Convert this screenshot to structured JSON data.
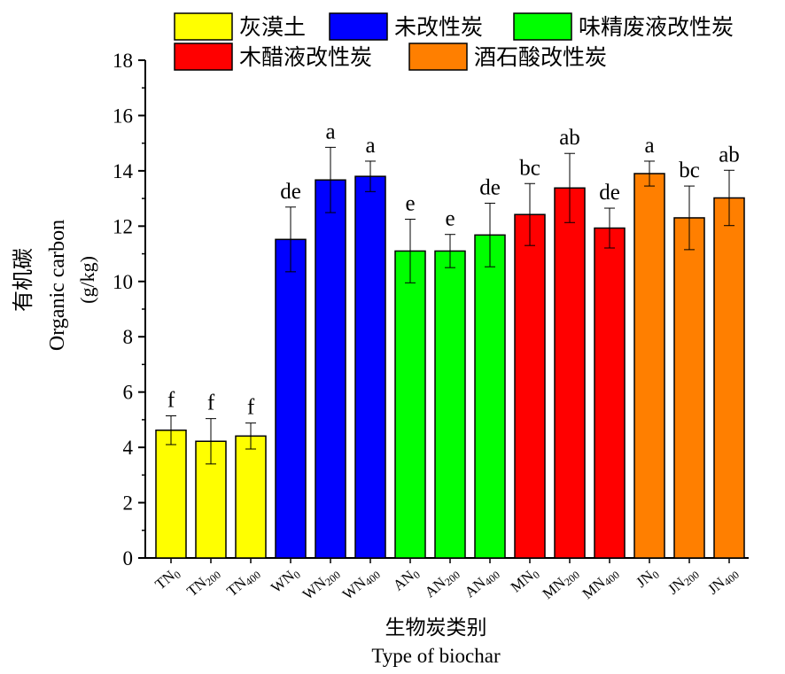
{
  "chart_data": {
    "type": "bar",
    "ylabel_cn": "有机碳",
    "ylabel_en": "Organic carbon",
    "ylabel_unit": "(g/kg)",
    "xlabel_cn": "生物炭类别",
    "xlabel_en": "Type of biochar",
    "ylim": [
      0,
      18
    ],
    "yticks": [
      0,
      2,
      4,
      6,
      8,
      10,
      12,
      14,
      16,
      18
    ],
    "legend": [
      {
        "label": "灰漠土",
        "color": "#ffff00"
      },
      {
        "label": "未改性炭",
        "color": "#0000ff"
      },
      {
        "label": "味精废液改性炭",
        "color": "#00ff00"
      },
      {
        "label": "木醋液改性炭",
        "color": "#ff0000"
      },
      {
        "label": "酒石酸改性炭",
        "color": "#ff7f00"
      }
    ],
    "bars": [
      {
        "base": "TN",
        "sub": "0",
        "value": 4.62,
        "error": 0.52,
        "letter": "f",
        "group": 0
      },
      {
        "base": "TN",
        "sub": "200",
        "value": 4.22,
        "error": 0.82,
        "letter": "f",
        "group": 0
      },
      {
        "base": "TN",
        "sub": "400",
        "value": 4.41,
        "error": 0.47,
        "letter": "f",
        "group": 0
      },
      {
        "base": "WN",
        "sub": "0",
        "value": 11.52,
        "error": 1.17,
        "letter": "de",
        "group": 1
      },
      {
        "base": "WN",
        "sub": "200",
        "value": 13.67,
        "error": 1.18,
        "letter": "a",
        "group": 1
      },
      {
        "base": "WN",
        "sub": "400",
        "value": 13.8,
        "error": 0.55,
        "letter": "a",
        "group": 1
      },
      {
        "base": "AN",
        "sub": "0",
        "value": 11.1,
        "error": 1.15,
        "letter": "e",
        "group": 2
      },
      {
        "base": "AN",
        "sub": "200",
        "value": 11.1,
        "error": 0.6,
        "letter": "e",
        "group": 2
      },
      {
        "base": "AN",
        "sub": "400",
        "value": 11.68,
        "error": 1.15,
        "letter": "de",
        "group": 2
      },
      {
        "base": "MN",
        "sub": "0",
        "value": 12.42,
        "error": 1.12,
        "letter": "bc",
        "group": 3
      },
      {
        "base": "MN",
        "sub": "200",
        "value": 13.38,
        "error": 1.25,
        "letter": "ab",
        "group": 3
      },
      {
        "base": "MN",
        "sub": "400",
        "value": 11.93,
        "error": 0.72,
        "letter": "de",
        "group": 3
      },
      {
        "base": "JN",
        "sub": "0",
        "value": 13.9,
        "error": 0.45,
        "letter": "a",
        "group": 4
      },
      {
        "base": "JN",
        "sub": "200",
        "value": 12.3,
        "error": 1.15,
        "letter": "bc",
        "group": 4
      },
      {
        "base": "JN",
        "sub": "400",
        "value": 13.02,
        "error": 1.0,
        "letter": "ab",
        "group": 4
      }
    ]
  }
}
